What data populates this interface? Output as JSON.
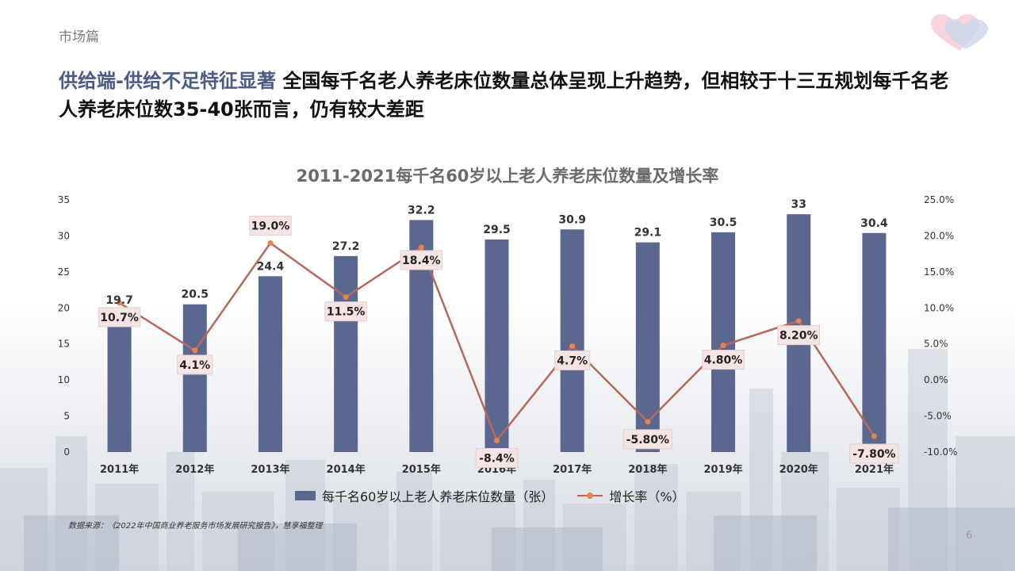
{
  "section": "市场篇",
  "headline": {
    "highlight": "供给端-供给不足特征显著",
    "text": " 全国每千名老人养老床位数量总体呈现上升趋势，但相较于十三五规划每千名老人养老床位数35-40张而言，仍有较大差距"
  },
  "chart_data": {
    "type": "bar",
    "title": "2011-2021每千名60岁以上老人养老床位数量及增长率",
    "categories": [
      "2011年",
      "2012年",
      "2013年",
      "2014年",
      "2015年",
      "2016年",
      "2017年",
      "2018年",
      "2019年",
      "2020年",
      "2021年"
    ],
    "series": [
      {
        "name": "每千名60岁以上老人养老床位数量（张）",
        "type": "bar",
        "axis": "left",
        "values": [
          19.7,
          20.5,
          24.4,
          27.2,
          32.2,
          29.5,
          30.9,
          29.1,
          30.5,
          33,
          30.4
        ],
        "labels": [
          "19.7",
          "20.5",
          "24.4",
          "27.2",
          "32.2",
          "29.5",
          "30.9",
          "29.1",
          "30.5",
          "33",
          "30.4"
        ]
      },
      {
        "name": "增长率（%）",
        "type": "line",
        "axis": "right",
        "values": [
          10.7,
          4.1,
          19.0,
          11.5,
          18.4,
          -8.4,
          4.7,
          -5.8,
          4.8,
          8.2,
          -7.8
        ],
        "labels": [
          "10.7%",
          "4.1%",
          "19.0%",
          "11.5%",
          "18.4%",
          "-8.4%",
          "4.7%",
          "-5.80%",
          "4.80%",
          "8.20%",
          "-7.80%"
        ]
      }
    ],
    "y_left": {
      "range": [
        0,
        35
      ],
      "ticks": [
        0,
        5,
        10,
        15,
        20,
        25,
        30,
        35
      ],
      "tick_labels": [
        "0",
        "5",
        "10",
        "15",
        "20",
        "25",
        "30",
        "35"
      ]
    },
    "y_right": {
      "range": [
        -10,
        25
      ],
      "ticks": [
        -10,
        -5,
        0,
        5,
        10,
        15,
        20,
        25
      ],
      "tick_labels": [
        "-10.0%",
        "-5.0%",
        "0.0%",
        "5.0%",
        "10.0%",
        "15.0%",
        "20.0%",
        "25.0%"
      ]
    },
    "grid": false,
    "legend": "bottom",
    "colors": {
      "bar": "#5a6890",
      "line": "#b8675c",
      "marker": "#e6844e",
      "label_box": "#f6e4e4"
    }
  },
  "legend": {
    "bar_label": "每千名60岁以上老人养老床位数量（张）",
    "line_label": "增长率（%）"
  },
  "source": "数据来源：《2022年中国商业养老服务市场发展研究报告》，慧享福整理",
  "page_number": "6",
  "logo_icon": "heart-logo-icon"
}
